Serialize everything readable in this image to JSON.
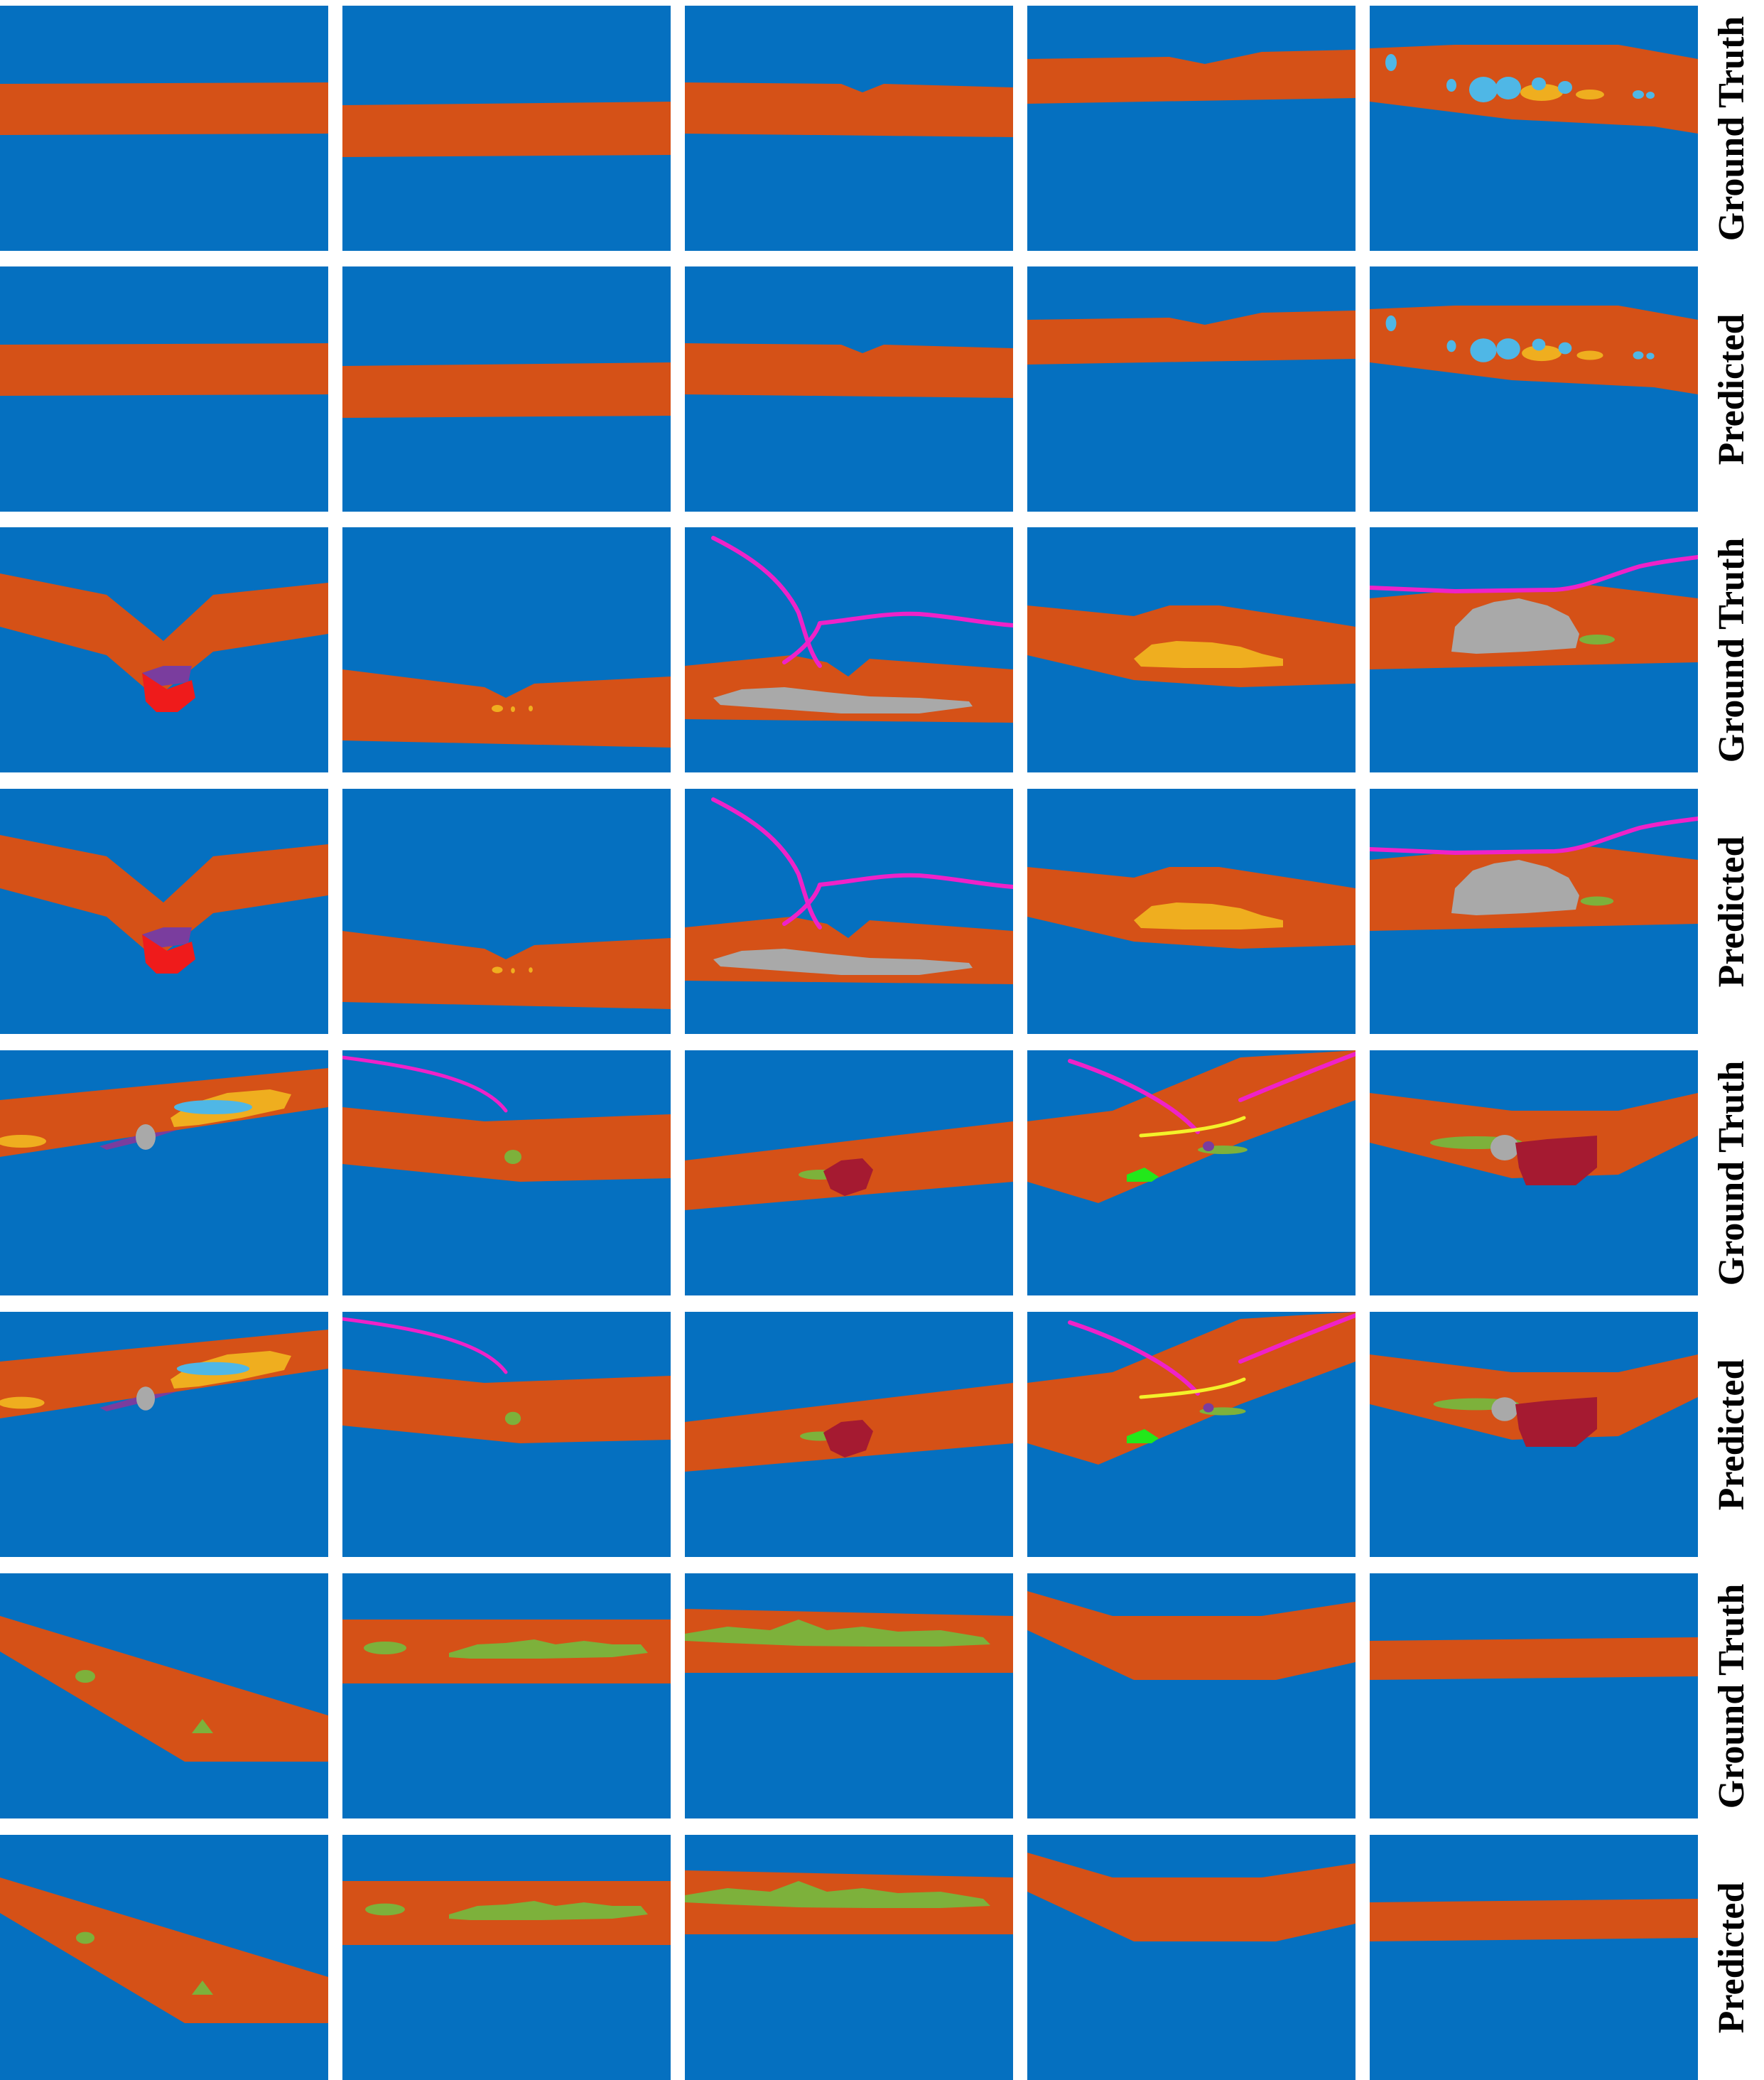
{
  "colors": {
    "background": "#0570C0",
    "retina": "#D55117",
    "orange": "#EFAE1F",
    "lightblue": "#4FB7E6",
    "green": "#7DB13B",
    "brightgreen": "#22E81A",
    "purple": "#7A3D9E",
    "red": "#EF1B1B",
    "gray": "#A9A9A9",
    "magenta": "#EF22C8",
    "darkred": "#A51A31",
    "yellow": "#F4F12A"
  },
  "row_labels": [
    "Ground Truth",
    "Predicted",
    "Ground Truth",
    "Predicted",
    "Ground Truth",
    "Predicted",
    "Ground Truth",
    "Predicted"
  ],
  "legend_note": "",
  "tile_icon": "oct-segmentation-mask"
}
